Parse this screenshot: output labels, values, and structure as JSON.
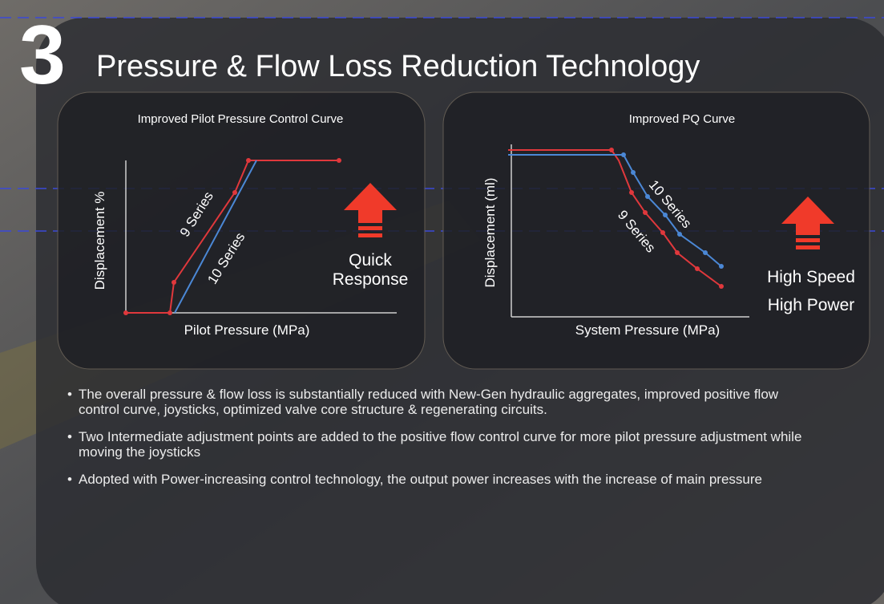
{
  "header": {
    "number": "3",
    "title": "Pressure & Flow Loss Reduction Technology"
  },
  "panels": [
    {
      "title": "Improved Pilot Pressure Control Curve",
      "y_label": "Displacement %",
      "x_label": "Pilot Pressure (MPa)",
      "series": [
        "9 Series",
        "10 Series"
      ],
      "callout": [
        "Quick",
        "Response"
      ]
    },
    {
      "title": "Improved PQ Curve",
      "y_label": "Displacement (ml)",
      "x_label": "System Pressure (MPa)",
      "series": [
        "10 Series",
        "9 Series"
      ],
      "callout": [
        "High Speed",
        "High Power"
      ]
    }
  ],
  "bullets": [
    "The overall pressure & flow loss is substantially reduced with New-Gen hydraulic aggregates, improved positive flow control curve, joysticks, optimized valve core structure & regenerating circuits.",
    "Two Intermediate adjustment points are added to the positive flow control curve for more pilot pressure adjustment while moving the joysticks",
    "Adopted with Power-increasing control technology, the output power increases with the increase of main pressure"
  ]
}
